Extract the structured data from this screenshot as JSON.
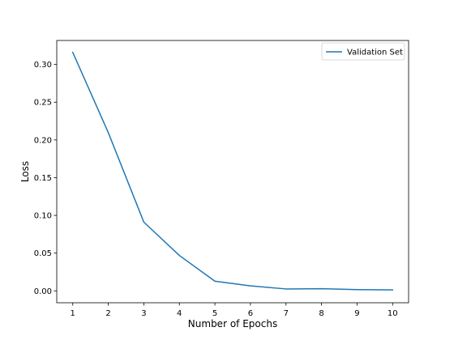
{
  "chart_data": {
    "type": "line",
    "title": "",
    "xlabel": "Number of Epochs",
    "ylabel": "Loss",
    "x": [
      1,
      2,
      3,
      4,
      5,
      6,
      7,
      8,
      9,
      10
    ],
    "xticks": [
      "1",
      "2",
      "3",
      "4",
      "5",
      "6",
      "7",
      "8",
      "9",
      "10"
    ],
    "yticks": [
      "0.00",
      "0.05",
      "0.10",
      "0.15",
      "0.20",
      "0.25",
      "0.30"
    ],
    "ytick_values": [
      0.0,
      0.05,
      0.1,
      0.15,
      0.2,
      0.25,
      0.3
    ],
    "xlim": [
      0.55,
      10.45
    ],
    "ylim": [
      -0.0158,
      0.3318
    ],
    "grid": false,
    "legend_position": "top-right",
    "series": [
      {
        "name": "Validation Set",
        "color": "#1f77b4",
        "values": [
          0.3161,
          0.2097,
          0.0911,
          0.0469,
          0.0128,
          0.0066,
          0.0025,
          0.0028,
          0.0016,
          0.0012
        ]
      }
    ]
  }
}
